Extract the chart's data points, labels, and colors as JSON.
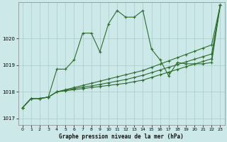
{
  "title": "Graphe pression niveau de la mer (hPa)",
  "bg_color": "#cce8e8",
  "grid_color": "#aacccc",
  "line_color": "#2d6e2d",
  "xlim": [
    -0.5,
    23.5
  ],
  "ylim": [
    1016.75,
    1021.35
  ],
  "yticks": [
    1017,
    1018,
    1019,
    1020
  ],
  "xticks": [
    0,
    1,
    2,
    3,
    4,
    5,
    6,
    7,
    8,
    9,
    10,
    11,
    12,
    13,
    14,
    15,
    16,
    17,
    18,
    19,
    20,
    21,
    22,
    23
  ],
  "lines": [
    [
      1017.4,
      1017.75,
      1017.75,
      1017.8,
      1018.85,
      1018.85,
      1019.2,
      1020.2,
      1020.2,
      1019.5,
      1020.55,
      1021.05,
      1020.8,
      1020.8,
      1021.05,
      1019.6,
      1019.2,
      1018.6,
      1019.1,
      1019.05,
      1019.05,
      1019.05,
      1019.1,
      1021.25
    ],
    [
      1017.4,
      1017.75,
      1017.75,
      1017.8,
      1018.0,
      1018.08,
      1018.16,
      1018.24,
      1018.32,
      1018.4,
      1018.48,
      1018.56,
      1018.64,
      1018.72,
      1018.8,
      1018.92,
      1019.04,
      1019.16,
      1019.28,
      1019.4,
      1019.52,
      1019.64,
      1019.76,
      1021.25
    ],
    [
      1017.4,
      1017.75,
      1017.75,
      1017.8,
      1018.0,
      1018.06,
      1018.12,
      1018.18,
      1018.22,
      1018.28,
      1018.34,
      1018.4,
      1018.46,
      1018.54,
      1018.62,
      1018.72,
      1018.82,
      1018.92,
      1019.02,
      1019.12,
      1019.22,
      1019.32,
      1019.42,
      1021.25
    ],
    [
      1017.4,
      1017.75,
      1017.75,
      1017.8,
      1018.0,
      1018.04,
      1018.08,
      1018.12,
      1018.16,
      1018.2,
      1018.24,
      1018.28,
      1018.32,
      1018.38,
      1018.44,
      1018.54,
      1018.64,
      1018.74,
      1018.84,
      1018.94,
      1019.04,
      1019.14,
      1019.24,
      1021.25
    ]
  ]
}
